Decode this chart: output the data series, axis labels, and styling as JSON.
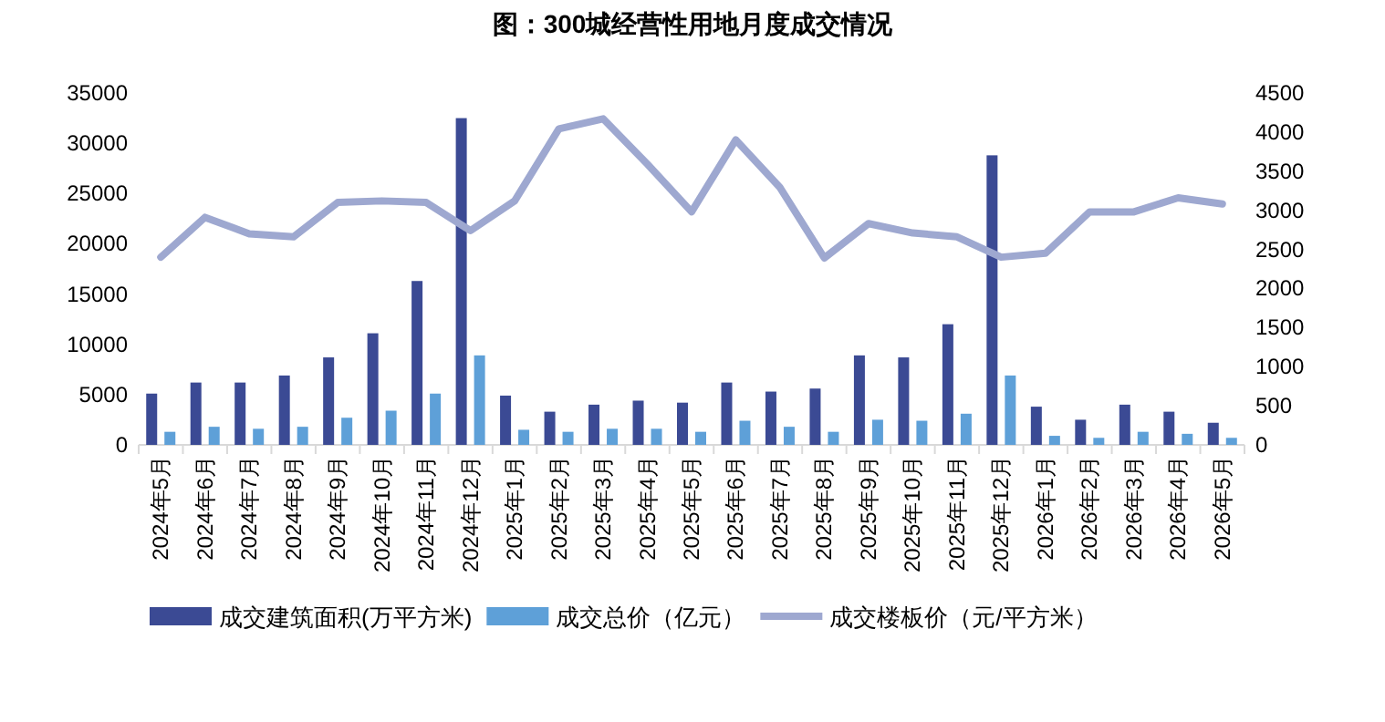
{
  "chart_data": {
    "type": "bar",
    "title": "图：300城经营性用地月度成交情况",
    "categories": [
      "2024年5月",
      "2024年6月",
      "2024年7月",
      "2024年8月",
      "2024年9月",
      "2024年10月",
      "2024年11月",
      "2024年12月",
      "2025年1月",
      "2025年2月",
      "2025年3月",
      "2025年4月",
      "2025年5月",
      "2025年6月",
      "2025年7月",
      "2025年8月",
      "2025年9月",
      "2025年10月",
      "2025年11月",
      "2025年12月",
      "2026年1月",
      "2026年2月",
      "2026年3月",
      "2026年4月",
      "2026年5月"
    ],
    "series": [
      {
        "name": "成交建筑面积(万平方米)",
        "color": "#3b4a94",
        "values": [
          5100,
          6200,
          6200,
          6900,
          8700,
          11100,
          16300,
          32500,
          4900,
          3300,
          4000,
          4400,
          4200,
          6200,
          5300,
          5600,
          8900,
          8700,
          12000,
          28800,
          3800,
          2500,
          4000,
          3300,
          2200
        ]
      },
      {
        "name": "成交总价（亿元）",
        "color": "#5ea0d8",
        "values": [
          1300,
          1800,
          1600,
          1800,
          2700,
          3400,
          5100,
          8900,
          1500,
          1300,
          1600,
          1600,
          1300,
          2400,
          1800,
          1300,
          2500,
          2400,
          3100,
          6900,
          900,
          700,
          1300,
          1100,
          700
        ]
      },
      {
        "name": "成交楼板价（元/平方米）",
        "type": "line",
        "axis": "y2",
        "color": "#9ea8d0",
        "values": [
          2400,
          2910,
          2700,
          2660,
          3100,
          3120,
          3100,
          2740,
          3120,
          4040,
          4170,
          3590,
          2980,
          3900,
          3290,
          2390,
          2830,
          2710,
          2660,
          2400,
          2450,
          2980,
          2980,
          3160,
          3080
        ]
      }
    ],
    "ylim": [
      0,
      35000
    ],
    "yticks": [
      0,
      5000,
      10000,
      15000,
      20000,
      25000,
      30000,
      35000
    ],
    "y2lim": [
      0,
      4500
    ],
    "y2ticks": [
      0,
      500,
      1000,
      1500,
      2000,
      2500,
      3000,
      3500,
      4000,
      4500
    ],
    "grid": false,
    "legend": "bottom"
  }
}
